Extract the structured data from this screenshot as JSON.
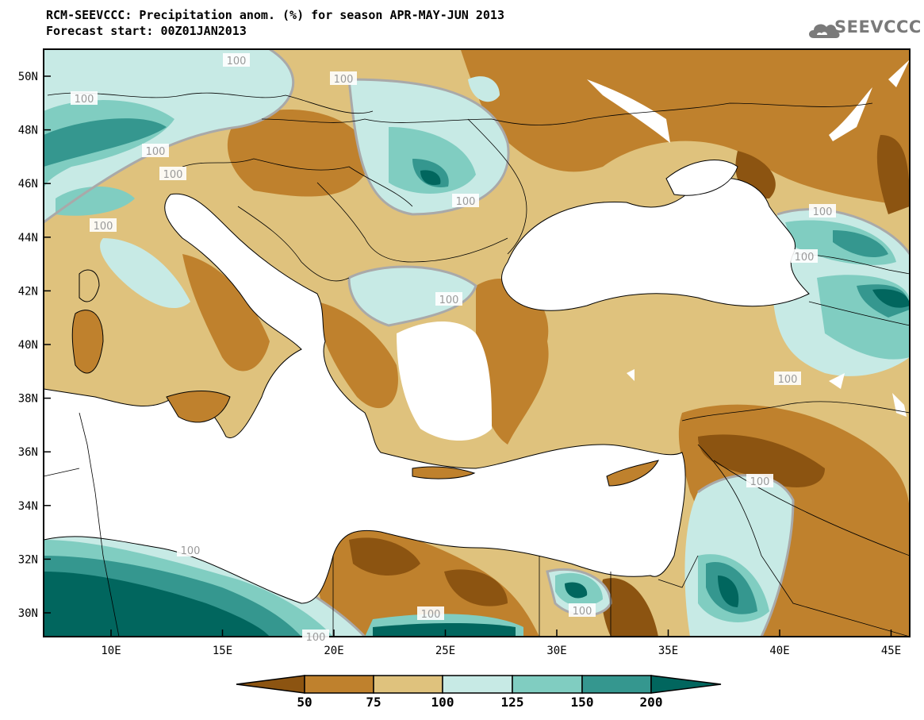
{
  "header": {
    "title_line1": "RCM-SEEVCCC: Precipitation anom. (%) for season APR-MAY-JUN 2013",
    "title_line2": "Forecast start: 00Z01JAN2013",
    "logo_text": "SEEVCCC"
  },
  "map": {
    "lat_labels": [
      "50N",
      "48N",
      "46N",
      "44N",
      "42N",
      "40N",
      "38N",
      "36N",
      "34N",
      "32N",
      "30N"
    ],
    "lon_labels": [
      "10E",
      "15E",
      "20E",
      "25E",
      "30E",
      "35E",
      "40E",
      "45E"
    ],
    "contour_label": "100",
    "colors": {
      "lt50": "#8c5411",
      "50_75": "#bf812d",
      "75_100": "#dfc27d",
      "100_125": "#c7eae5",
      "125_150": "#80cdc1",
      "150_200": "#35978f",
      "gt200": "#01665e",
      "sea": "#ffffff",
      "contour": "#a9a9a9"
    }
  },
  "colorbar": {
    "labels": [
      "50",
      "75",
      "100",
      "125",
      "150",
      "200"
    ],
    "colors": [
      "#8c5411",
      "#bf812d",
      "#dfc27d",
      "#c7eae5",
      "#80cdc1",
      "#35978f",
      "#01665e"
    ]
  }
}
